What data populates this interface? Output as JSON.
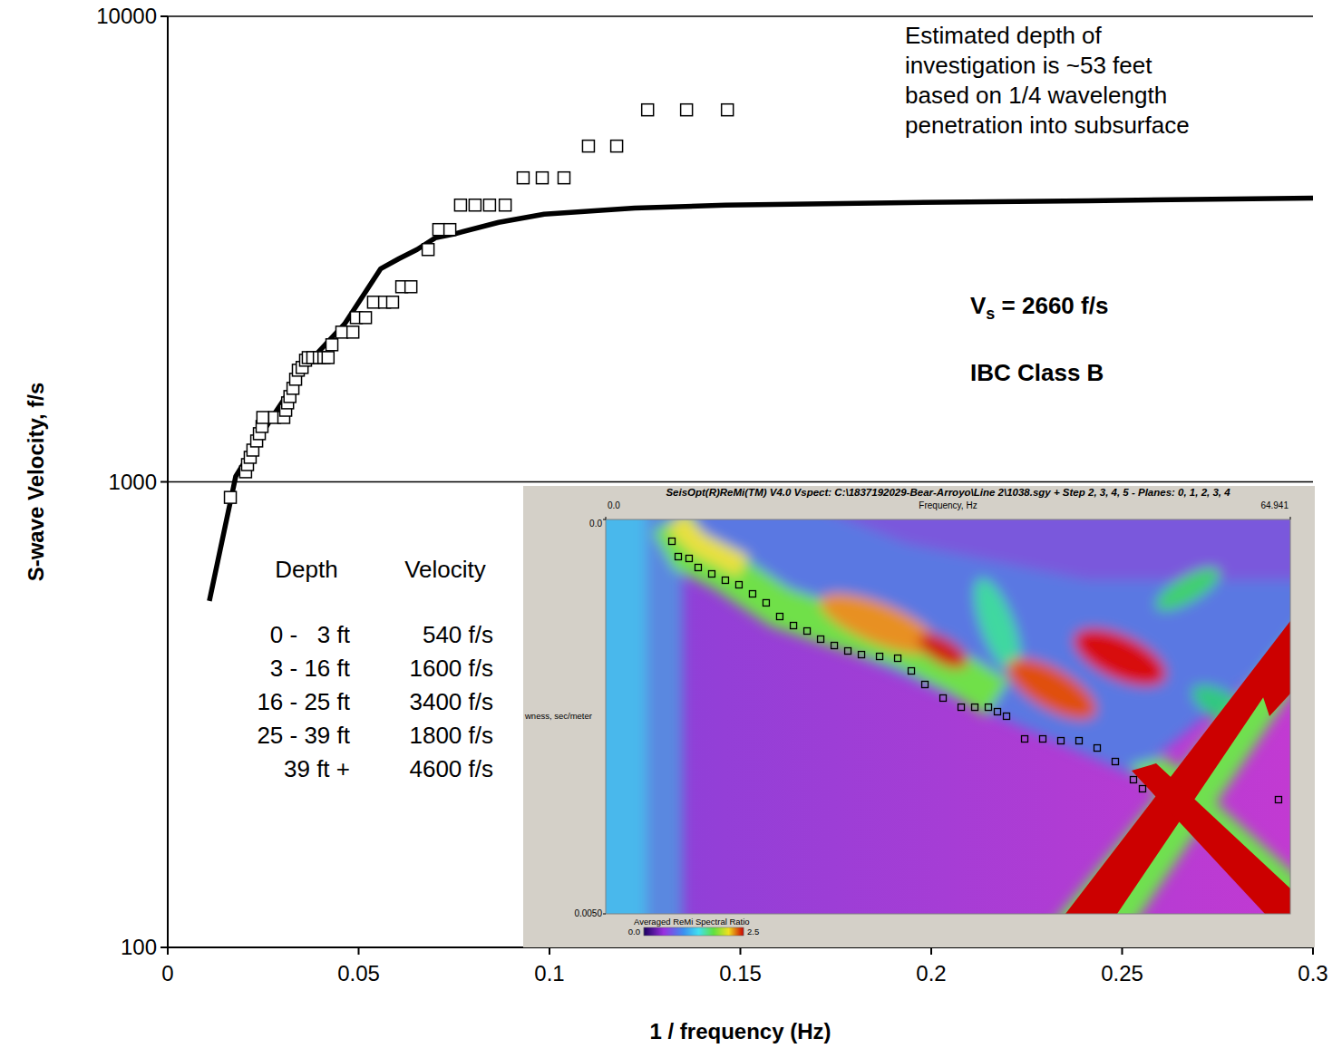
{
  "chart_data": [
    {
      "type": "scatter",
      "xlabel": "1 / frequency (Hz)",
      "ylabel": "S-wave Velocity, f/s",
      "log": "y",
      "grid": true,
      "xlim": [
        0,
        0.3
      ],
      "ylim": [
        100,
        10000
      ],
      "xticks": [
        0,
        0.05,
        0.1,
        0.15,
        0.2,
        0.25,
        0.3
      ],
      "yticks": [
        100,
        1000,
        10000
      ],
      "series": [
        {
          "type": "line",
          "color": "#000000",
          "line_style": "solid",
          "x": [
            0.0109,
            0.0178,
            0.0273,
            0.0368,
            0.0463,
            0.0558,
            0.0606,
            0.0653,
            0.0701,
            0.0748,
            0.0867,
            0.0986,
            0.1223,
            0.1461,
            0.1936,
            0.2411,
            0.3
          ],
          "values": [
            555,
            1027,
            1375,
            1800,
            2183,
            2871,
            3017,
            3155,
            3342,
            3404,
            3610,
            3758,
            3872,
            3931,
            3981,
            4017,
            4070
          ]
        },
        {
          "type": "scatter",
          "color": "#000000",
          "marker": "square",
          "x": [
            0.0164,
            0.0204,
            0.0209,
            0.0216,
            0.0223,
            0.0233,
            0.024,
            0.0247,
            0.0249,
            0.028,
            0.0304,
            0.0309,
            0.0314,
            0.032,
            0.0328,
            0.0335,
            0.0342,
            0.0352,
            0.0361,
            0.0368,
            0.038,
            0.0397,
            0.0409,
            0.042,
            0.043,
            0.0456,
            0.0485,
            0.0494,
            0.0518,
            0.0539,
            0.0568,
            0.0589,
            0.0613,
            0.0637,
            0.0682,
            0.071,
            0.0739,
            0.0767,
            0.0805,
            0.0843,
            0.0884,
            0.0931,
            0.0981,
            0.1038,
            0.1102,
            0.1176,
            0.1257,
            0.1359,
            0.1466
          ],
          "values": [
            926,
            1051,
            1089,
            1129,
            1170,
            1224,
            1269,
            1315,
            1375,
            1375,
            1375,
            1425,
            1478,
            1525,
            1588,
            1661,
            1737,
            1761,
            1825,
            1849,
            1849,
            1849,
            1849,
            1849,
            1970,
            2097,
            2097,
            2253,
            2253,
            2432,
            2432,
            2432,
            2625,
            2625,
            3155,
            3483,
            3483,
            3931,
            3931,
            3931,
            3931,
            4498,
            4498,
            4498,
            5263,
            5263,
            6296,
            6296,
            6296
          ]
        }
      ],
      "annotations": {
        "depth_note": [
          "Estimated depth of",
          "investigation is ~53 feet",
          "based on 1/4 wavelength",
          "penetration into subsurface"
        ],
        "vs": {
          "symbol": "V",
          "subscript": "s",
          "text": " = 2660 f/s"
        },
        "site_class": "IBC Class B"
      },
      "table": {
        "header": [
          "Depth",
          "Velocity"
        ],
        "rows": [
          [
            "0 -   3 ft",
            "540 f/s"
          ],
          [
            "3 - 16 ft",
            "1600 f/s"
          ],
          [
            "16 - 25 ft",
            "3400 f/s"
          ],
          [
            "25 - 39 ft",
            "1800 f/s"
          ],
          [
            "39 ft +",
            "4600 f/s"
          ]
        ]
      }
    },
    {
      "type": "scatter",
      "title": "SeisOpt(R)ReMi(TM) V4.0 Vspect: C:\\1837192029-Bear-Arroyo\\Line 2\\1038.sgy + Step 2, 3, 4, 5 - Planes: 0, 1, 2, 3, 4",
      "xlabel": "Frequency, Hz",
      "ylabel": "wness, sec/meter",
      "xlim": [
        0,
        64.941
      ],
      "ylim": [
        0,
        0.005
      ],
      "xticks": [
        {
          "value": 0,
          "label": "0.0"
        },
        64.941
      ],
      "yticks": [
        {
          "value": 0,
          "label": "0.0"
        },
        {
          "value": 0.005,
          "label": "0.0050"
        }
      ],
      "series": [
        {
          "type": "scatter",
          "color": "#000000",
          "marker": "square",
          "x": [
            6.28,
            6.88,
            7.91,
            8.77,
            10.06,
            11.35,
            12.64,
            13.93,
            15.22,
            16.51,
            17.81,
            19.1,
            20.39,
            21.68,
            22.97,
            24.26,
            25.98,
            27.7,
            28.99,
            30.28,
            32.0,
            33.72,
            35.01,
            36.3,
            37.16,
            38.02,
            39.74,
            41.46,
            43.18,
            44.9,
            46.62,
            48.34,
            50.06,
            50.92,
            63.82
          ],
          "values": [
            0.000276,
            0.000471,
            0.000494,
            0.000609,
            0.00069,
            0.00077,
            0.000828,
            0.000943,
            0.001057,
            0.00123,
            0.001345,
            0.001414,
            0.001517,
            0.001598,
            0.001667,
            0.001713,
            0.001736,
            0.001759,
            0.00192,
            0.002092,
            0.002264,
            0.00238,
            0.00238,
            0.00238,
            0.002437,
            0.002494,
            0.002782,
            0.002782,
            0.002805,
            0.002805,
            0.002897,
            0.003069,
            0.003299,
            0.003414,
            0.003552
          ]
        }
      ],
      "colorbar": {
        "label": "Averaged ReMi Spectral Ratio",
        "range": [
          0,
          2.5
        ],
        "ticks": [
          {
            "value": 0,
            "label": "0.0"
          },
          {
            "value": 2.5,
            "label": "2.5"
          }
        ]
      }
    }
  ]
}
